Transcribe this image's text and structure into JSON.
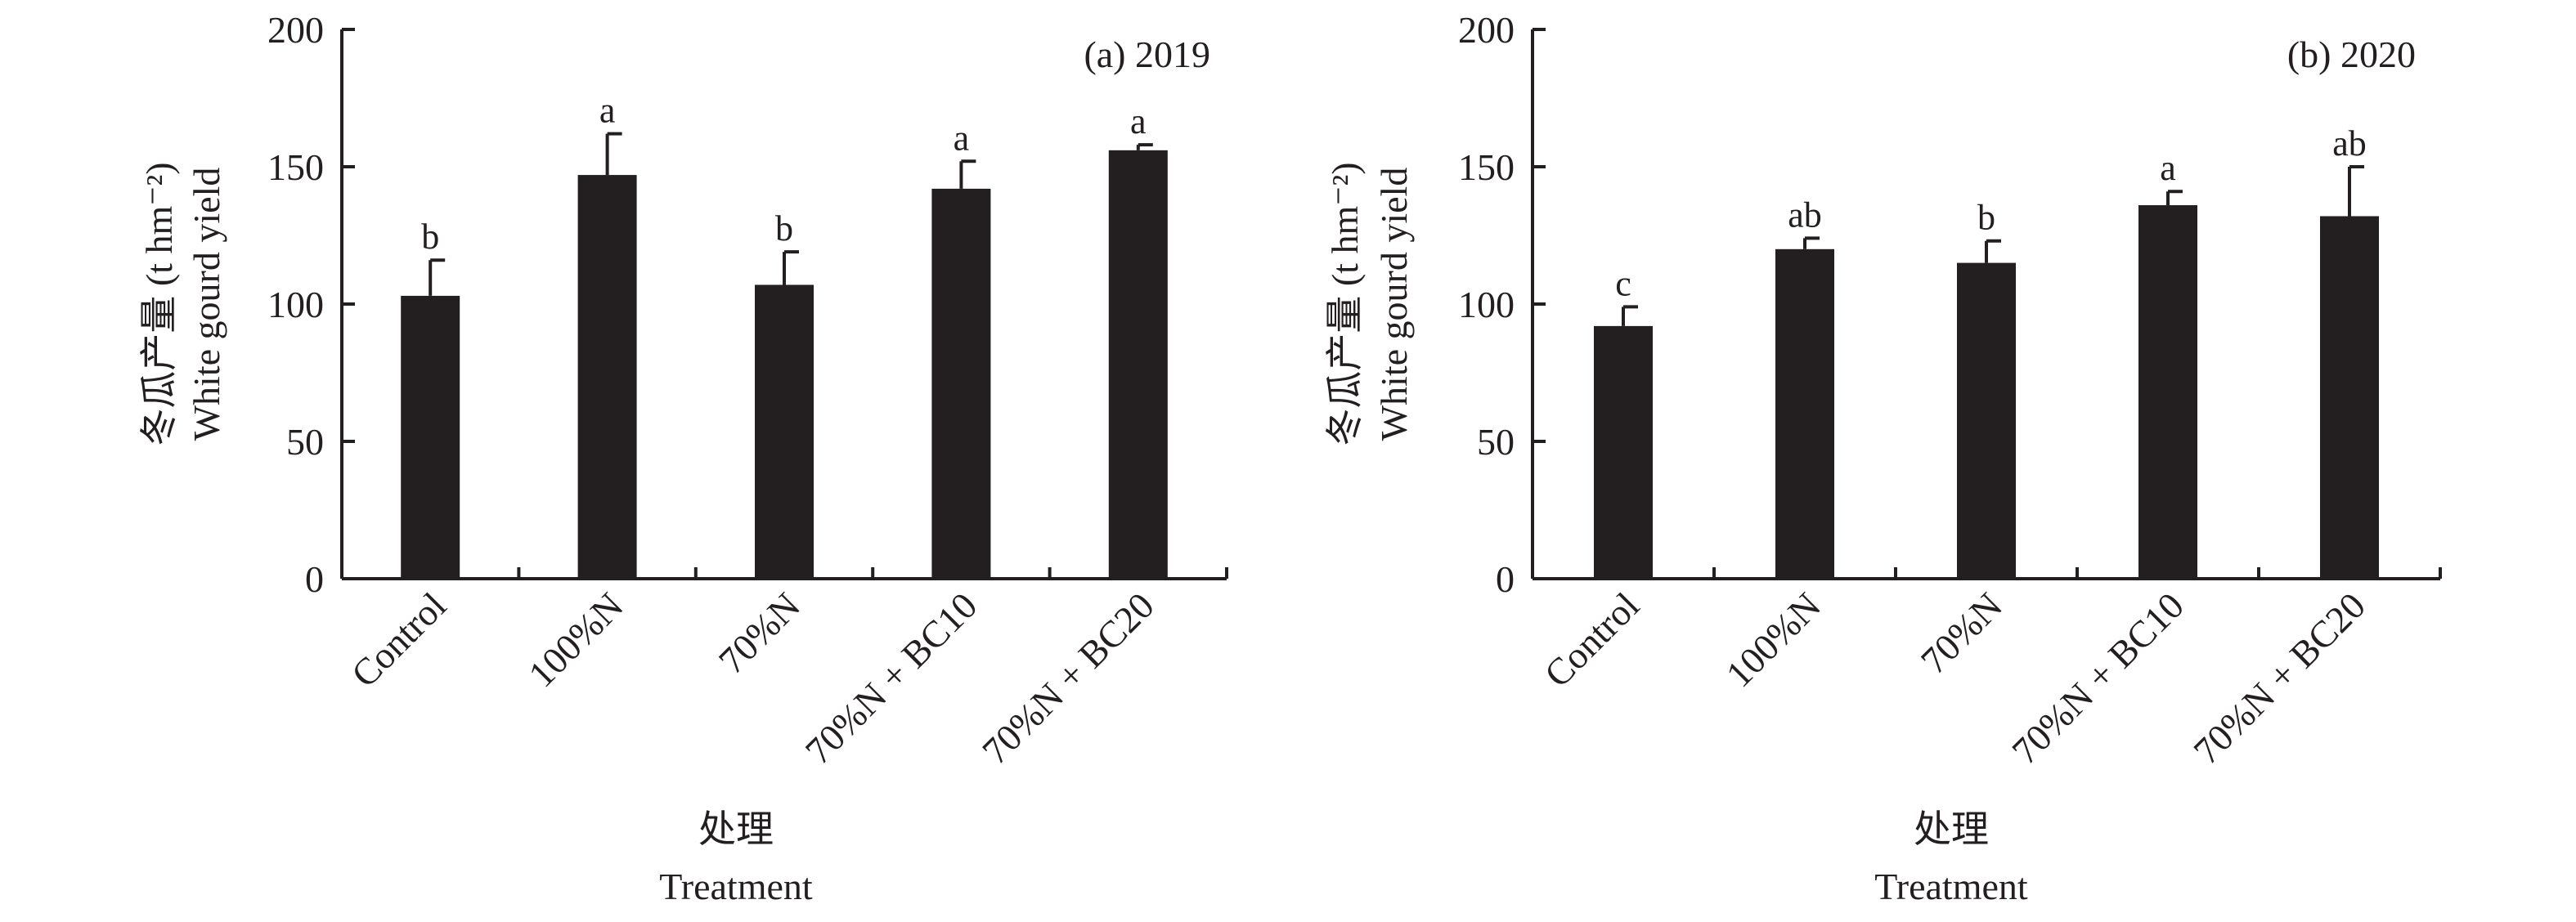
{
  "chart_data": [
    {
      "type": "bar",
      "annotation": "(a) 2019",
      "ylabel_cn": "冬瓜产量 (t hm⁻²)",
      "ylabel_en": "White gourd yield",
      "xlabel_cn": "处理",
      "xlabel_en": "Treatment",
      "ylim": [
        0,
        200
      ],
      "yticks": [
        "0",
        "50",
        "100",
        "150",
        "200"
      ],
      "categories": [
        "Control",
        "100%N",
        "70%N",
        "70%N + BC10",
        "70%N + BC20"
      ],
      "values": [
        103,
        147,
        107,
        142,
        156
      ],
      "errors": [
        13,
        15,
        12,
        10,
        2
      ],
      "significance": [
        "b",
        "a",
        "b",
        "a",
        "a"
      ],
      "colors": {
        "bar": "#231f20"
      }
    },
    {
      "type": "bar",
      "annotation": "(b) 2020",
      "ylabel_cn": "冬瓜产量 (t hm⁻²)",
      "ylabel_en": "White gourd yield",
      "xlabel_cn": "处理",
      "xlabel_en": "Treatment",
      "ylim": [
        0,
        200
      ],
      "yticks": [
        "0",
        "50",
        "100",
        "150",
        "200"
      ],
      "categories": [
        "Control",
        "100%N",
        "70%N",
        "70%N + BC10",
        "70%N + BC20"
      ],
      "values": [
        92,
        120,
        115,
        136,
        132
      ],
      "errors": [
        7,
        4,
        8,
        5,
        18
      ],
      "significance": [
        "c",
        "ab",
        "b",
        "a",
        "ab"
      ],
      "colors": {
        "bar": "#231f20"
      }
    }
  ]
}
